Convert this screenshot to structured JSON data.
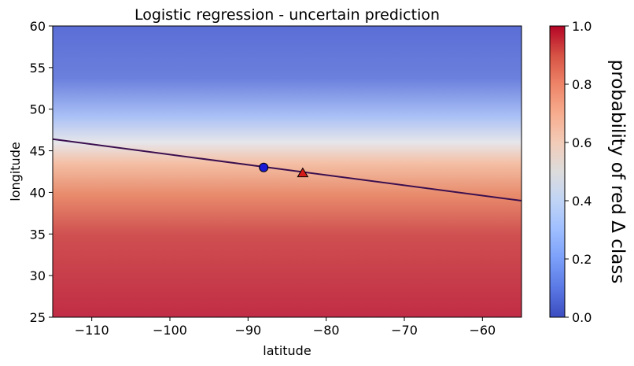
{
  "colors": {
    "low": "#5a6ed6",
    "mid": "#dddddd",
    "high": "#c12d45",
    "boundary": "#3b0f4f",
    "blue_point": "#1a1ad6",
    "red_point": "#d61a1a"
  },
  "chart_data": {
    "type": "heatmap",
    "title": "Logistic regression - uncertain prediction",
    "xlabel": "latitude",
    "ylabel": "longitude",
    "xlim": [
      -115,
      -55
    ],
    "ylim": [
      25,
      60
    ],
    "x_ticks": [
      -110,
      -100,
      -90,
      -80,
      -70,
      -60
    ],
    "y_ticks": [
      25,
      30,
      35,
      40,
      45,
      50,
      55,
      60
    ],
    "x_tick_labels": [
      "−110",
      "−100",
      "−90",
      "−80",
      "−70",
      "−60"
    ],
    "y_tick_labels": [
      "25",
      "30",
      "35",
      "40",
      "45",
      "50",
      "55",
      "60"
    ],
    "colormap": "coolwarm",
    "decision_boundary": {
      "x": [
        -115,
        -55
      ],
      "y": [
        46.4,
        39.0
      ],
      "probability": 0.5
    },
    "points": [
      {
        "class": "blue circle",
        "x": -88,
        "y": 43.0
      },
      {
        "class": "red triangle",
        "x": -83,
        "y": 42.3
      }
    ],
    "colorbar": {
      "label": "probability of red Δ class",
      "range": [
        0.0,
        1.0
      ],
      "ticks": [
        0.0,
        0.2,
        0.4,
        0.6,
        0.8,
        1.0
      ],
      "tick_labels": [
        "0.0",
        "0.2",
        "0.4",
        "0.6",
        "0.8",
        "1.0"
      ]
    },
    "grid": false
  }
}
